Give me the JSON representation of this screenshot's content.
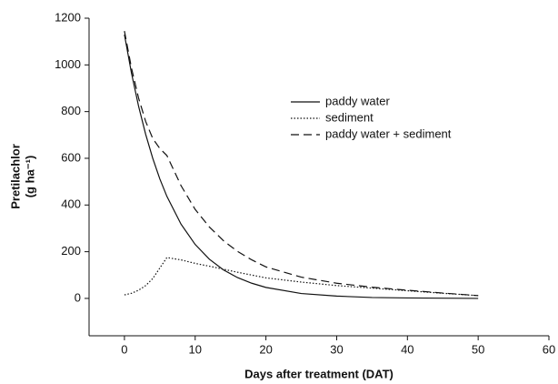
{
  "chart_data": {
    "type": "line",
    "xlabel": "Days after treatment (DAT)",
    "ylabel": "Pretilachlor",
    "ylabel_unit": "(g ha⁻¹)",
    "x": [
      0,
      1,
      2,
      3,
      4,
      5,
      6,
      8,
      10,
      12,
      14,
      16,
      18,
      20,
      25,
      30,
      35,
      40,
      45,
      50
    ],
    "series": [
      {
        "name": "paddy water",
        "color": "#111111",
        "style": "solid",
        "values": [
          1130,
          964,
          823,
          703,
          600,
          512,
          437,
          318,
          231,
          168,
          122,
          89,
          65,
          47,
          21,
          10,
          4,
          2,
          1,
          0
        ]
      },
      {
        "name": "sediment",
        "color": "#111111",
        "style": "dotted",
        "values": [
          15,
          22,
          35,
          55,
          85,
          130,
          175,
          165,
          150,
          138,
          125,
          112,
          100,
          88,
          70,
          55,
          44,
          33,
          22,
          12
        ]
      },
      {
        "name": "paddy water + sediment",
        "color": "#111111",
        "style": "dashed",
        "values": [
          1145,
          986,
          858,
          758,
          685,
          642,
          612,
          483,
          381,
          306,
          247,
          201,
          165,
          135,
          91,
          65,
          48,
          35,
          23,
          12
        ]
      }
    ],
    "xlim": [
      -5,
      60
    ],
    "xticks": [
      0,
      10,
      20,
      30,
      40,
      50,
      60
    ],
    "ylim": [
      -160,
      1200
    ],
    "yticks": [
      0,
      200,
      400,
      600,
      800,
      1000,
      1200
    ],
    "legend": "upper-center"
  }
}
